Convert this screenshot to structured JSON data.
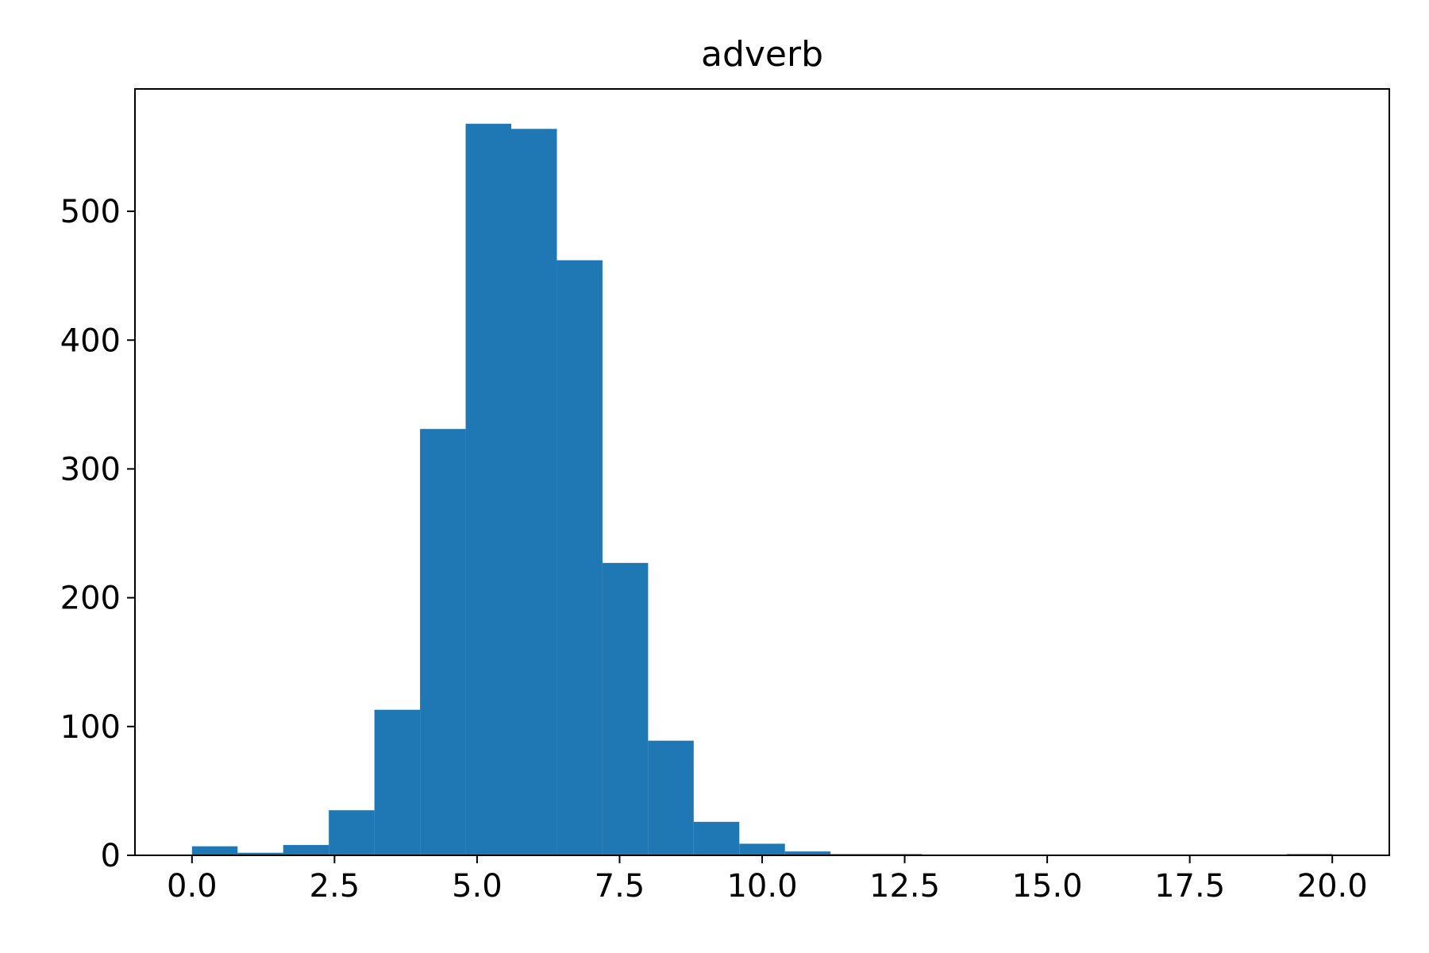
{
  "chart_data": {
    "type": "bar",
    "title": "adverb",
    "xlabel": "",
    "ylabel": "",
    "bar_color": "#1f77b4",
    "xlim": [
      -1.0,
      21.0
    ],
    "ylim": [
      0,
      595
    ],
    "bin_edges": [
      0.0,
      0.8,
      1.6,
      2.4,
      3.2,
      4.0,
      4.8,
      5.6,
      6.4,
      7.2,
      8.0,
      8.8,
      9.6,
      10.4,
      11.2,
      12.0,
      12.8,
      13.6,
      14.4,
      15.2,
      16.0,
      16.8,
      17.6,
      18.4,
      19.2,
      20.0
    ],
    "values": [
      7,
      2,
      8,
      35,
      113,
      331,
      568,
      564,
      462,
      227,
      89,
      26,
      9,
      3,
      1,
      1,
      0,
      0,
      0,
      0,
      0,
      0,
      0,
      0,
      1
    ],
    "x_ticks": [
      0.0,
      2.5,
      5.0,
      7.5,
      10.0,
      12.5,
      15.0,
      17.5,
      20.0
    ],
    "x_tick_labels": [
      "0.0",
      "2.5",
      "5.0",
      "7.5",
      "10.0",
      "12.5",
      "15.0",
      "17.5",
      "20.0"
    ],
    "y_ticks": [
      0,
      100,
      200,
      300,
      400,
      500
    ],
    "y_tick_labels": [
      "0",
      "100",
      "200",
      "300",
      "400",
      "500"
    ],
    "grid": false,
    "legend": "none"
  }
}
